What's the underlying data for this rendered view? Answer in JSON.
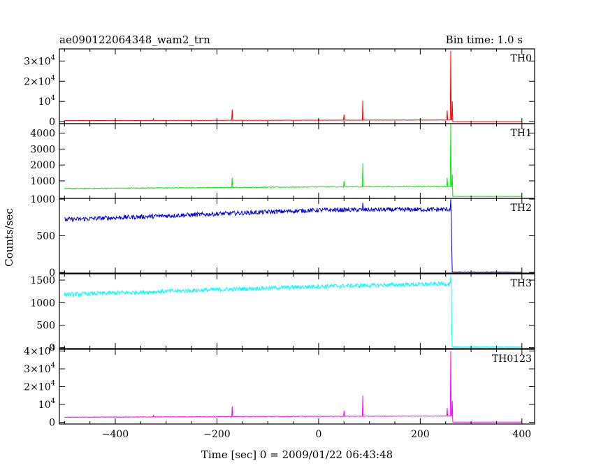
{
  "header": {
    "title": "ae090122064348_wam2_trn",
    "bin_time": "Bin time: 1.0 s"
  },
  "axes": {
    "xlabel": "Time [sec] 0 = 2009/01/22 06:43:48",
    "ylabel": "Counts/sec"
  },
  "chart_data": {
    "type": "line",
    "title": "ae090122064348_wam2_trn",
    "xlabel": "Time [sec] 0 = 2009/01/22 06:43:48",
    "ylabel": "Counts/sec",
    "xlim": [
      -510,
      425
    ],
    "x_ticks": [
      -400,
      -200,
      0,
      200,
      400
    ],
    "x_range_data": [
      -500,
      400
    ],
    "panels": [
      {
        "name": "TH0",
        "color": "#ff0000",
        "ylim": [
          -1000,
          36000
        ],
        "y_ticks": [
          {
            "v": 0,
            "base": "0",
            "exp": ""
          },
          {
            "v": 10000,
            "base": "10",
            "exp": "4"
          },
          {
            "v": 20000,
            "base": "2×10",
            "exp": "4"
          },
          {
            "v": 30000,
            "base": "3×10",
            "exp": "4"
          }
        ],
        "baseline": [
          [
            -500,
            550
          ],
          [
            0,
            700
          ],
          [
            255,
            800
          ]
        ],
        "noise": 60,
        "spikes": [
          [
            -325,
            1400
          ],
          [
            -170,
            6000
          ],
          [
            0,
            1200
          ],
          [
            50,
            3500
          ],
          [
            87,
            10500
          ],
          [
            253,
            5500
          ],
          [
            260,
            35000
          ],
          [
            263,
            10000
          ]
        ],
        "drop_at": 262,
        "after": 0
      },
      {
        "name": "TH1",
        "color": "#00ee00",
        "ylim": [
          -100,
          4600
        ],
        "y_ticks": [
          {
            "v": 1000,
            "base": "1000",
            "exp": ""
          },
          {
            "v": 2000,
            "base": "2000",
            "exp": ""
          },
          {
            "v": 3000,
            "base": "3000",
            "exp": ""
          },
          {
            "v": 4000,
            "base": "4000",
            "exp": ""
          }
        ],
        "baseline": [
          [
            -500,
            520
          ],
          [
            0,
            620
          ],
          [
            255,
            650
          ]
        ],
        "noise": 25,
        "spikes": [
          [
            -170,
            1200
          ],
          [
            50,
            1000
          ],
          [
            87,
            2100
          ],
          [
            253,
            1200
          ],
          [
            260,
            4600
          ],
          [
            263,
            1400
          ]
        ],
        "drop_at": 262,
        "after": 25
      },
      {
        "name": "TH2",
        "color": "#0000dd",
        "ylim": [
          -10,
          1010
        ],
        "y_ticks": [
          {
            "v": 0,
            "base": "0",
            "exp": ""
          },
          {
            "v": 500,
            "base": "500",
            "exp": ""
          },
          {
            "v": 1000,
            "base": "1000",
            "exp": ""
          }
        ],
        "baseline": [
          [
            -500,
            720
          ],
          [
            0,
            850
          ],
          [
            255,
            860
          ]
        ],
        "noise": 30,
        "spikes": [
          [
            87,
            950
          ],
          [
            260,
            1000
          ],
          [
            262,
            350
          ]
        ],
        "drop_at": 262,
        "after": 5
      },
      {
        "name": "TH3",
        "color": "#00ffff",
        "ylim": [
          -20,
          1640
        ],
        "y_ticks": [
          {
            "v": 0,
            "base": "0",
            "exp": ""
          },
          {
            "v": 500,
            "base": "500",
            "exp": ""
          },
          {
            "v": 1000,
            "base": "1000",
            "exp": ""
          },
          {
            "v": 1500,
            "base": "1500",
            "exp": ""
          }
        ],
        "baseline": [
          [
            -500,
            1180
          ],
          [
            0,
            1360
          ],
          [
            255,
            1420
          ]
        ],
        "noise": 45,
        "spikes": [
          [
            260,
            1600
          ],
          [
            262,
            400
          ]
        ],
        "drop_at": 262,
        "after": 15
      },
      {
        "name": "TH0123",
        "color": "#ff00ff",
        "ylim": [
          -1000,
          41000
        ],
        "y_ticks": [
          {
            "v": 0,
            "base": "0",
            "exp": ""
          },
          {
            "v": 10000,
            "base": "10",
            "exp": "4"
          },
          {
            "v": 20000,
            "base": "2×10",
            "exp": "4"
          },
          {
            "v": 30000,
            "base": "3×10",
            "exp": "4"
          },
          {
            "v": 40000,
            "base": "4×10",
            "exp": "4"
          }
        ],
        "baseline": [
          [
            -500,
            2800
          ],
          [
            0,
            3300
          ],
          [
            255,
            3500
          ]
        ],
        "noise": 150,
        "spikes": [
          [
            -325,
            3800
          ],
          [
            -170,
            9000
          ],
          [
            50,
            6500
          ],
          [
            87,
            15000
          ],
          [
            253,
            8000
          ],
          [
            260,
            40000
          ],
          [
            263,
            12000
          ]
        ],
        "drop_at": 262,
        "after": 100
      }
    ]
  }
}
